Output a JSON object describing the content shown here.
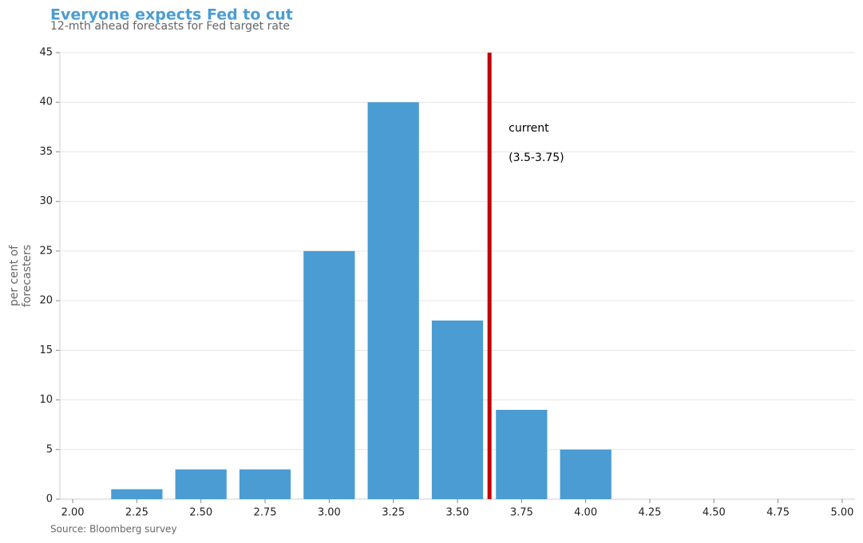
{
  "chart_data": {
    "type": "bar",
    "title": "Everyone expects Fed to cut",
    "subtitle": "12-mth ahead forecasts for Fed target rate",
    "ylabel": [
      "per cent of",
      "forecasters"
    ],
    "source": "Source: Bloomberg survey",
    "x": [
      2.25,
      2.5,
      2.75,
      3.0,
      3.25,
      3.5,
      3.75,
      4.0
    ],
    "values": [
      1,
      3,
      3,
      25,
      40,
      18,
      9,
      5
    ],
    "color": "#4a9cd3",
    "xlim": [
      1.95,
      5.05
    ],
    "xticks": [
      {
        "value": 2,
        "label": "2.00"
      },
      2.25,
      {
        "value": 2.5,
        "label": "2.50"
      },
      2.75,
      {
        "value": 3,
        "label": "3.00"
      },
      3.25,
      {
        "value": 3.5,
        "label": "3.50"
      },
      3.75,
      {
        "value": 4,
        "label": "4.00"
      },
      4.25,
      {
        "value": 4.5,
        "label": "4.50"
      },
      4.75,
      {
        "value": 5,
        "label": "5.00"
      }
    ],
    "ylim": [
      0,
      45
    ],
    "yticks": [
      0,
      5,
      10,
      15,
      20,
      25,
      30,
      35,
      40,
      45
    ],
    "grid": true,
    "reference_line": {
      "x": 3.625,
      "color": "#c00000"
    },
    "annotations": [
      "current",
      "(3.5-3.75)"
    ]
  }
}
